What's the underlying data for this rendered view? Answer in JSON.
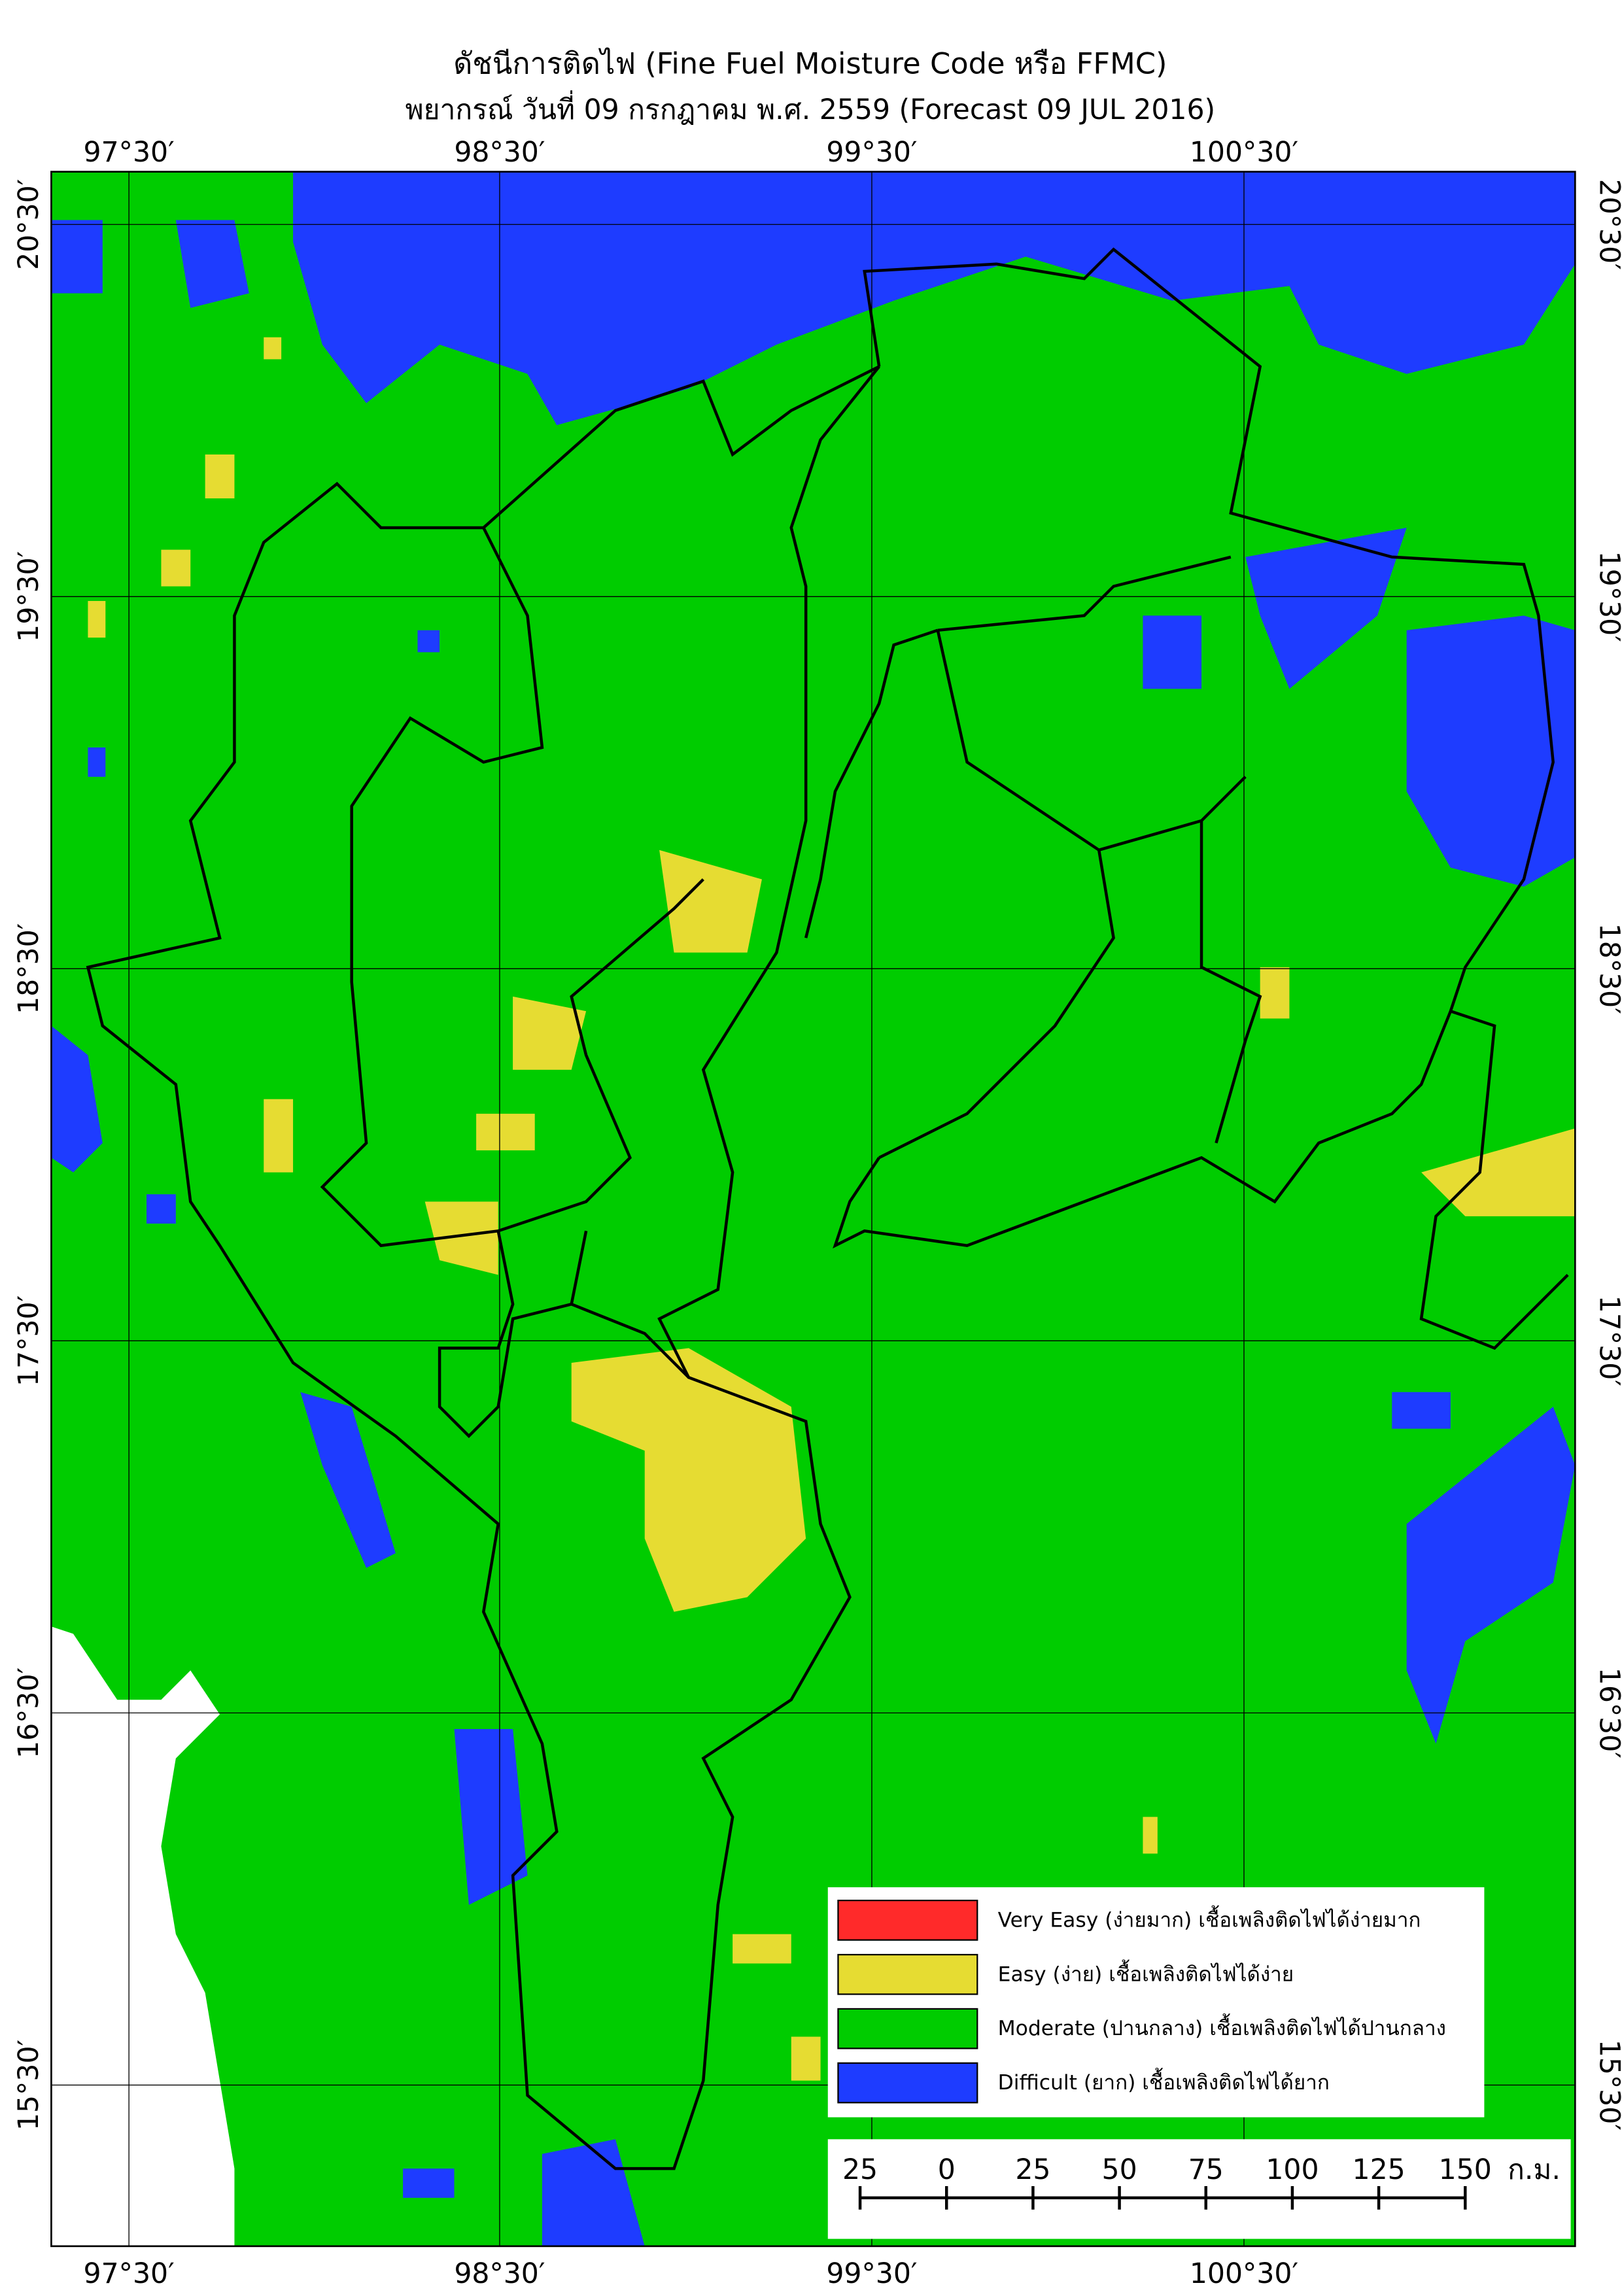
{
  "header": {
    "title": "ดัชนีการติดไฟ (Fine Fuel Moisture Code หรือ FFMC)",
    "subtitle": "พยากรณ์ วันที่ 09 กรกฎาคม พ.ศ. 2559 (Forecast 09 JUL 2016)"
  },
  "top_longitudes": [
    "97°30′",
    "98°30′",
    "99°30′",
    "100°30′"
  ],
  "bottom_longitudes": [
    "97°30′",
    "98°30′",
    "99°30′",
    "100°30′"
  ],
  "left_latitudes": [
    "20°30′",
    "19°30′",
    "18°30′",
    "17°30′",
    "16°30′",
    "15°30′"
  ],
  "right_latitudes": [
    "20°30′",
    "19°30′",
    "18°30′",
    "17°30′",
    "16°30′",
    "15°30′"
  ],
  "legend": [
    {
      "label": "Very Easy (ง่ายมาก) เชื้อเพลิงติดไฟได้ง่ายมาก",
      "color": "#ff2a2a"
    },
    {
      "label": "Easy (ง่าย) เชื้อเพลิงติดไฟได้ง่าย",
      "color": "#e6dc32"
    },
    {
      "label": "Moderate (ปานกลาง) เชื้อเพลิงติดไฟได้ปานกลาง",
      "color": "#00cc00"
    },
    {
      "label": "Difficult (ยาก) เชื้อเพลิงติดไฟได้ยาก",
      "color": "#1e3cff"
    }
  ],
  "scale_bar": {
    "labels": [
      "25",
      "0",
      "25",
      "50",
      "75",
      "100",
      "125",
      "150"
    ],
    "unit": "ก.ม."
  }
}
